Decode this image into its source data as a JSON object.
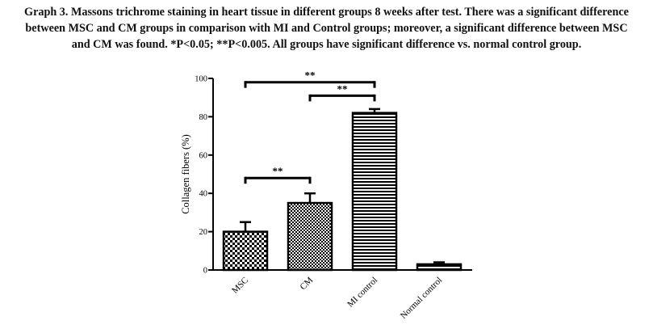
{
  "caption": {
    "line1": "Graph 3. Massons trichrome staining in heart tissue in different groups 8 weeks after test. There was a significant difference",
    "line2": "between MSC and CM groups in comparison with MI and Control groups; moreover, a significant difference between MSC",
    "line3": "and CM was found. *P<0.05; **P<0.005. All groups have significant difference vs. normal control group."
  },
  "chart_data": {
    "type": "bar",
    "categories": [
      "MSC",
      "CM",
      "MI control",
      "Normal control"
    ],
    "values": [
      20,
      35,
      82,
      3
    ],
    "errors": [
      5,
      5,
      2,
      1
    ],
    "patterns": [
      "checker",
      "checker-dense",
      "hstripes",
      "hstripes"
    ],
    "ylabel": "Collagen fibers (%)",
    "xlabel": "",
    "title": "",
    "ylim": [
      0,
      100
    ],
    "yticks": [
      0,
      20,
      40,
      60,
      80,
      100
    ],
    "grid": false,
    "significance": [
      {
        "from": "MSC",
        "to": "CM",
        "label": "**",
        "y": 48
      },
      {
        "from": "CM",
        "to": "MI control",
        "label": "**",
        "y": 91
      },
      {
        "from": "MSC",
        "to": "MI control",
        "label": "**",
        "y": 98
      }
    ],
    "colors": {
      "bar_fill": "#000000",
      "bar_bg": "#ffffff",
      "axis": "#000000"
    }
  }
}
